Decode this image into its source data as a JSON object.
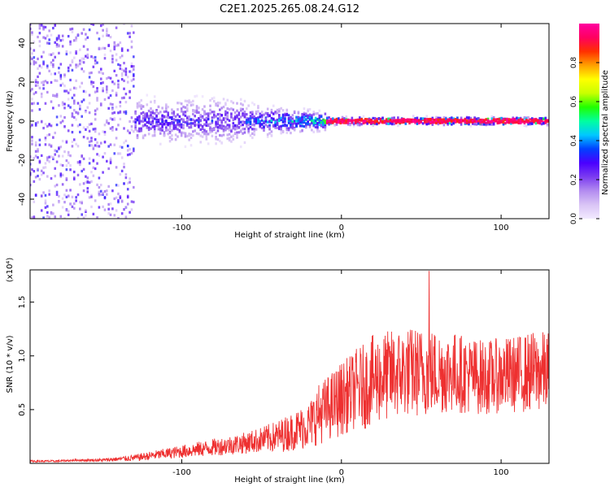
{
  "title": "C2E1.2025.265.08.24.G12",
  "chart_data": [
    {
      "type": "heatmap",
      "name": "spectrogram",
      "xlabel": "Height of straight line (km)",
      "ylabel": "Frequency (Hz)",
      "xlim": [
        -195,
        130
      ],
      "ylim": [
        -50,
        50
      ],
      "xticks": [
        -100,
        0,
        100
      ],
      "yticks": [
        -40,
        -20,
        0,
        20,
        40
      ],
      "colorbar": {
        "label": "Normalized spectral amplitude",
        "range": [
          0,
          1
        ],
        "ticks": [
          0.0,
          0.2,
          0.4,
          0.6,
          0.8
        ],
        "colors": [
          "#f2eaff",
          "#d9c4f5",
          "#b38cf0",
          "#7b3cf0",
          "#4a00ff",
          "#0040ff",
          "#00c8ff",
          "#00ffa0",
          "#20ff00",
          "#c8ff00",
          "#ffff00",
          "#ffa000",
          "#ff3000",
          "#ff0060",
          "#ff00a0"
        ]
      },
      "regions": [
        {
          "x_range": [
            -195,
            -130
          ],
          "freq_halfwidth": 50,
          "amplitude": 0.1,
          "note": "broadband noise"
        },
        {
          "x_range": [
            -130,
            -60
          ],
          "freq_halfwidth": 12,
          "amplitude": 0.3
        },
        {
          "x_range": [
            -60,
            -10
          ],
          "freq_halfwidth": 8,
          "amplitude": 0.45
        },
        {
          "x_range": [
            -10,
            130
          ],
          "freq_halfwidth": 2,
          "amplitude": 0.95,
          "note": "narrow carrier at 0 Hz"
        }
      ]
    },
    {
      "type": "line",
      "name": "snr",
      "xlabel": "Height of straight line (km)",
      "ylabel": "SNR (10 * v/v)",
      "scale_label": "(x10⁴)",
      "xlim": [
        -195,
        130
      ],
      "ylim": [
        0,
        1.8
      ],
      "xticks": [
        -100,
        0,
        100
      ],
      "yticks": [
        0.5,
        1.0,
        1.5
      ],
      "color": "#ee3030",
      "series": [
        {
          "name": "SNR",
          "x": [
            -195,
            -180,
            -165,
            -150,
            -140,
            -130,
            -120,
            -110,
            -100,
            -90,
            -80,
            -70,
            -60,
            -50,
            -40,
            -30,
            -20,
            -15,
            -10,
            -5,
            0,
            5,
            10,
            15,
            20,
            25,
            30,
            40,
            50,
            60,
            70,
            80,
            90,
            100,
            110,
            120,
            130
          ],
          "mean": [
            0.02,
            0.02,
            0.03,
            0.03,
            0.04,
            0.05,
            0.07,
            0.09,
            0.11,
            0.13,
            0.15,
            0.17,
            0.19,
            0.22,
            0.25,
            0.3,
            0.36,
            0.45,
            0.5,
            0.55,
            0.6,
            0.65,
            0.7,
            0.72,
            0.78,
            0.8,
            0.82,
            0.85,
            0.85,
            0.85,
            0.85,
            0.82,
            0.8,
            0.82,
            0.83,
            0.85,
            0.85
          ],
          "spread": [
            0.01,
            0.01,
            0.01,
            0.015,
            0.02,
            0.03,
            0.04,
            0.05,
            0.06,
            0.07,
            0.08,
            0.09,
            0.1,
            0.12,
            0.15,
            0.18,
            0.22,
            0.28,
            0.3,
            0.32,
            0.35,
            0.35,
            0.38,
            0.4,
            0.42,
            0.42,
            0.42,
            0.42,
            0.42,
            0.4,
            0.38,
            0.36,
            0.35,
            0.35,
            0.36,
            0.38,
            0.38
          ],
          "max": 1.79,
          "max_at_x": 55
        }
      ]
    }
  ]
}
